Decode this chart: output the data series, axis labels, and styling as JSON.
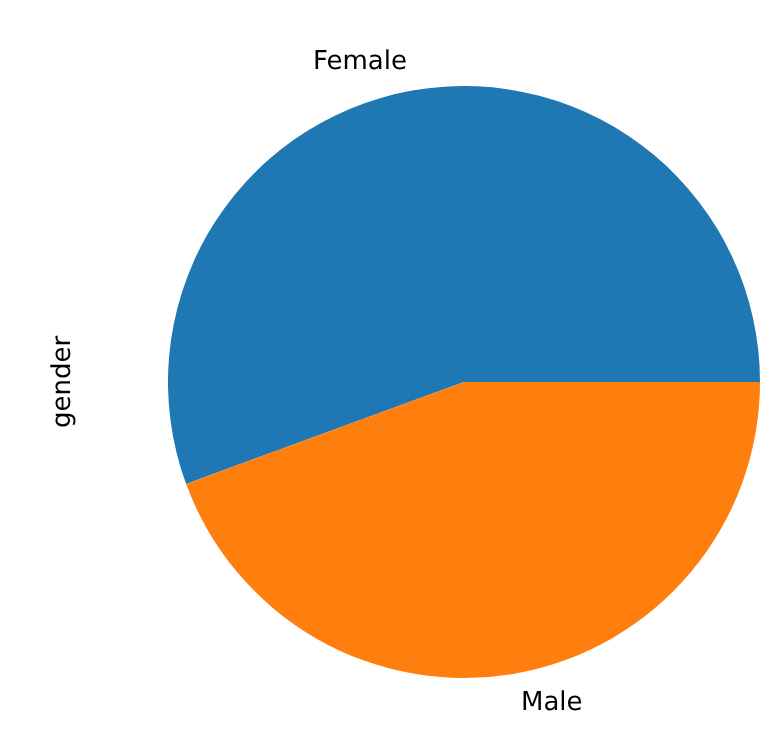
{
  "chart_data": {
    "type": "pie",
    "ylabel": "gender",
    "categories": [
      "Female",
      "Male"
    ],
    "values": [
      55.6,
      44.4
    ],
    "colors": [
      "#1f77b4",
      "#ff7f0e"
    ]
  }
}
